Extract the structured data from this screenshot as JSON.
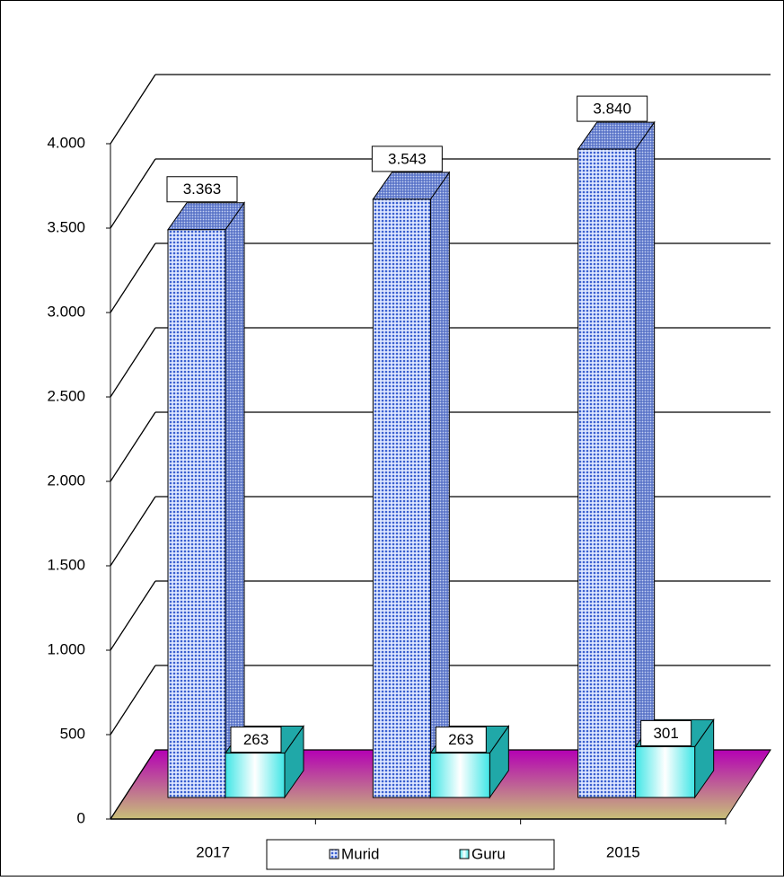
{
  "chart_data": {
    "type": "bar3d",
    "categories": [
      "2017",
      null,
      "2015"
    ],
    "series": [
      {
        "name": "Murid",
        "color": "#7f9ee6",
        "values": [
          3363,
          3543,
          3840
        ],
        "value_labels": [
          "3.363",
          "3.543",
          "3.840"
        ]
      },
      {
        "name": "Guru",
        "color": "#40e0e0",
        "values": [
          263,
          263,
          301
        ],
        "value_labels": [
          "263",
          "263",
          "301"
        ]
      }
    ],
    "ylim": [
      0,
      4000
    ],
    "yticks": [
      0,
      500,
      {
        "value": 1000,
        "label": "1.000"
      },
      {
        "value": 1500,
        "label": "1.500"
      },
      {
        "value": 2000,
        "label": "2.000"
      },
      {
        "value": 2500,
        "label": "2.500"
      },
      {
        "value": 3000,
        "label": "3.000"
      },
      {
        "value": 3500,
        "label": "3.500"
      },
      {
        "value": 4000,
        "label": "4.000"
      }
    ],
    "grid": true,
    "legend": "bottom"
  }
}
